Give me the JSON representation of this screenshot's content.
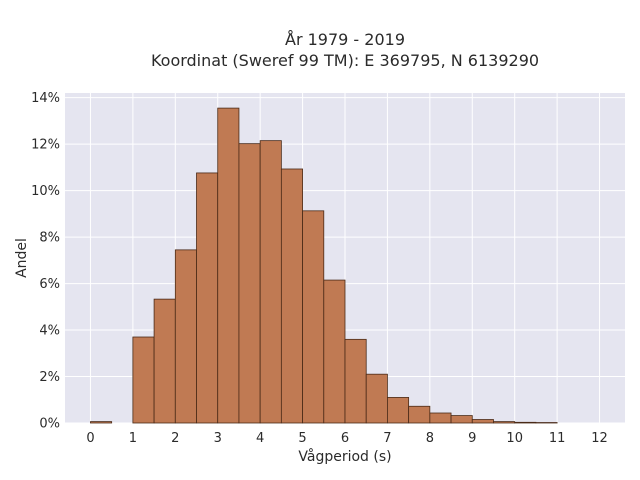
{
  "chart_data": {
    "type": "bar",
    "title_line1": "År 1979 - 2019",
    "title_line2": "Koordinat (Sweref 99 TM): E 369795, N 6139290",
    "xlabel": "Vågperiod (s)",
    "ylabel": "Andel",
    "xlim": [
      -0.6,
      12.6
    ],
    "ylim": [
      0,
      14.2
    ],
    "x_ticks": [
      0,
      1,
      2,
      3,
      4,
      5,
      6,
      7,
      8,
      9,
      10,
      11,
      12
    ],
    "y_ticks": [
      0,
      2,
      4,
      6,
      8,
      10,
      12,
      14
    ],
    "y_tick_labels": [
      "0%",
      "2%",
      "4%",
      "6%",
      "8%",
      "10%",
      "12%",
      "14%"
    ],
    "bar_width": 0.5,
    "bins": [
      {
        "x0": 0.0,
        "value": 0.06
      },
      {
        "x0": 1.0,
        "value": 3.7
      },
      {
        "x0": 1.5,
        "value": 5.33
      },
      {
        "x0": 2.0,
        "value": 7.45
      },
      {
        "x0": 2.5,
        "value": 10.76
      },
      {
        "x0": 3.0,
        "value": 13.55
      },
      {
        "x0": 3.5,
        "value": 12.02
      },
      {
        "x0": 4.0,
        "value": 12.15
      },
      {
        "x0": 4.5,
        "value": 10.93
      },
      {
        "x0": 5.0,
        "value": 9.13
      },
      {
        "x0": 5.5,
        "value": 6.15
      },
      {
        "x0": 6.0,
        "value": 3.6
      },
      {
        "x0": 6.5,
        "value": 2.1
      },
      {
        "x0": 7.0,
        "value": 1.1
      },
      {
        "x0": 7.5,
        "value": 0.72
      },
      {
        "x0": 8.0,
        "value": 0.43
      },
      {
        "x0": 8.5,
        "value": 0.32
      },
      {
        "x0": 9.0,
        "value": 0.15
      },
      {
        "x0": 9.5,
        "value": 0.06
      },
      {
        "x0": 10.0,
        "value": 0.03
      },
      {
        "x0": 10.5,
        "value": 0.02
      }
    ],
    "grid": true,
    "colors": {
      "bar": "#c07a53",
      "bar_edge": "#4a2a17",
      "plot_background": "#e5e5f0",
      "grid": "#ffffff"
    }
  }
}
